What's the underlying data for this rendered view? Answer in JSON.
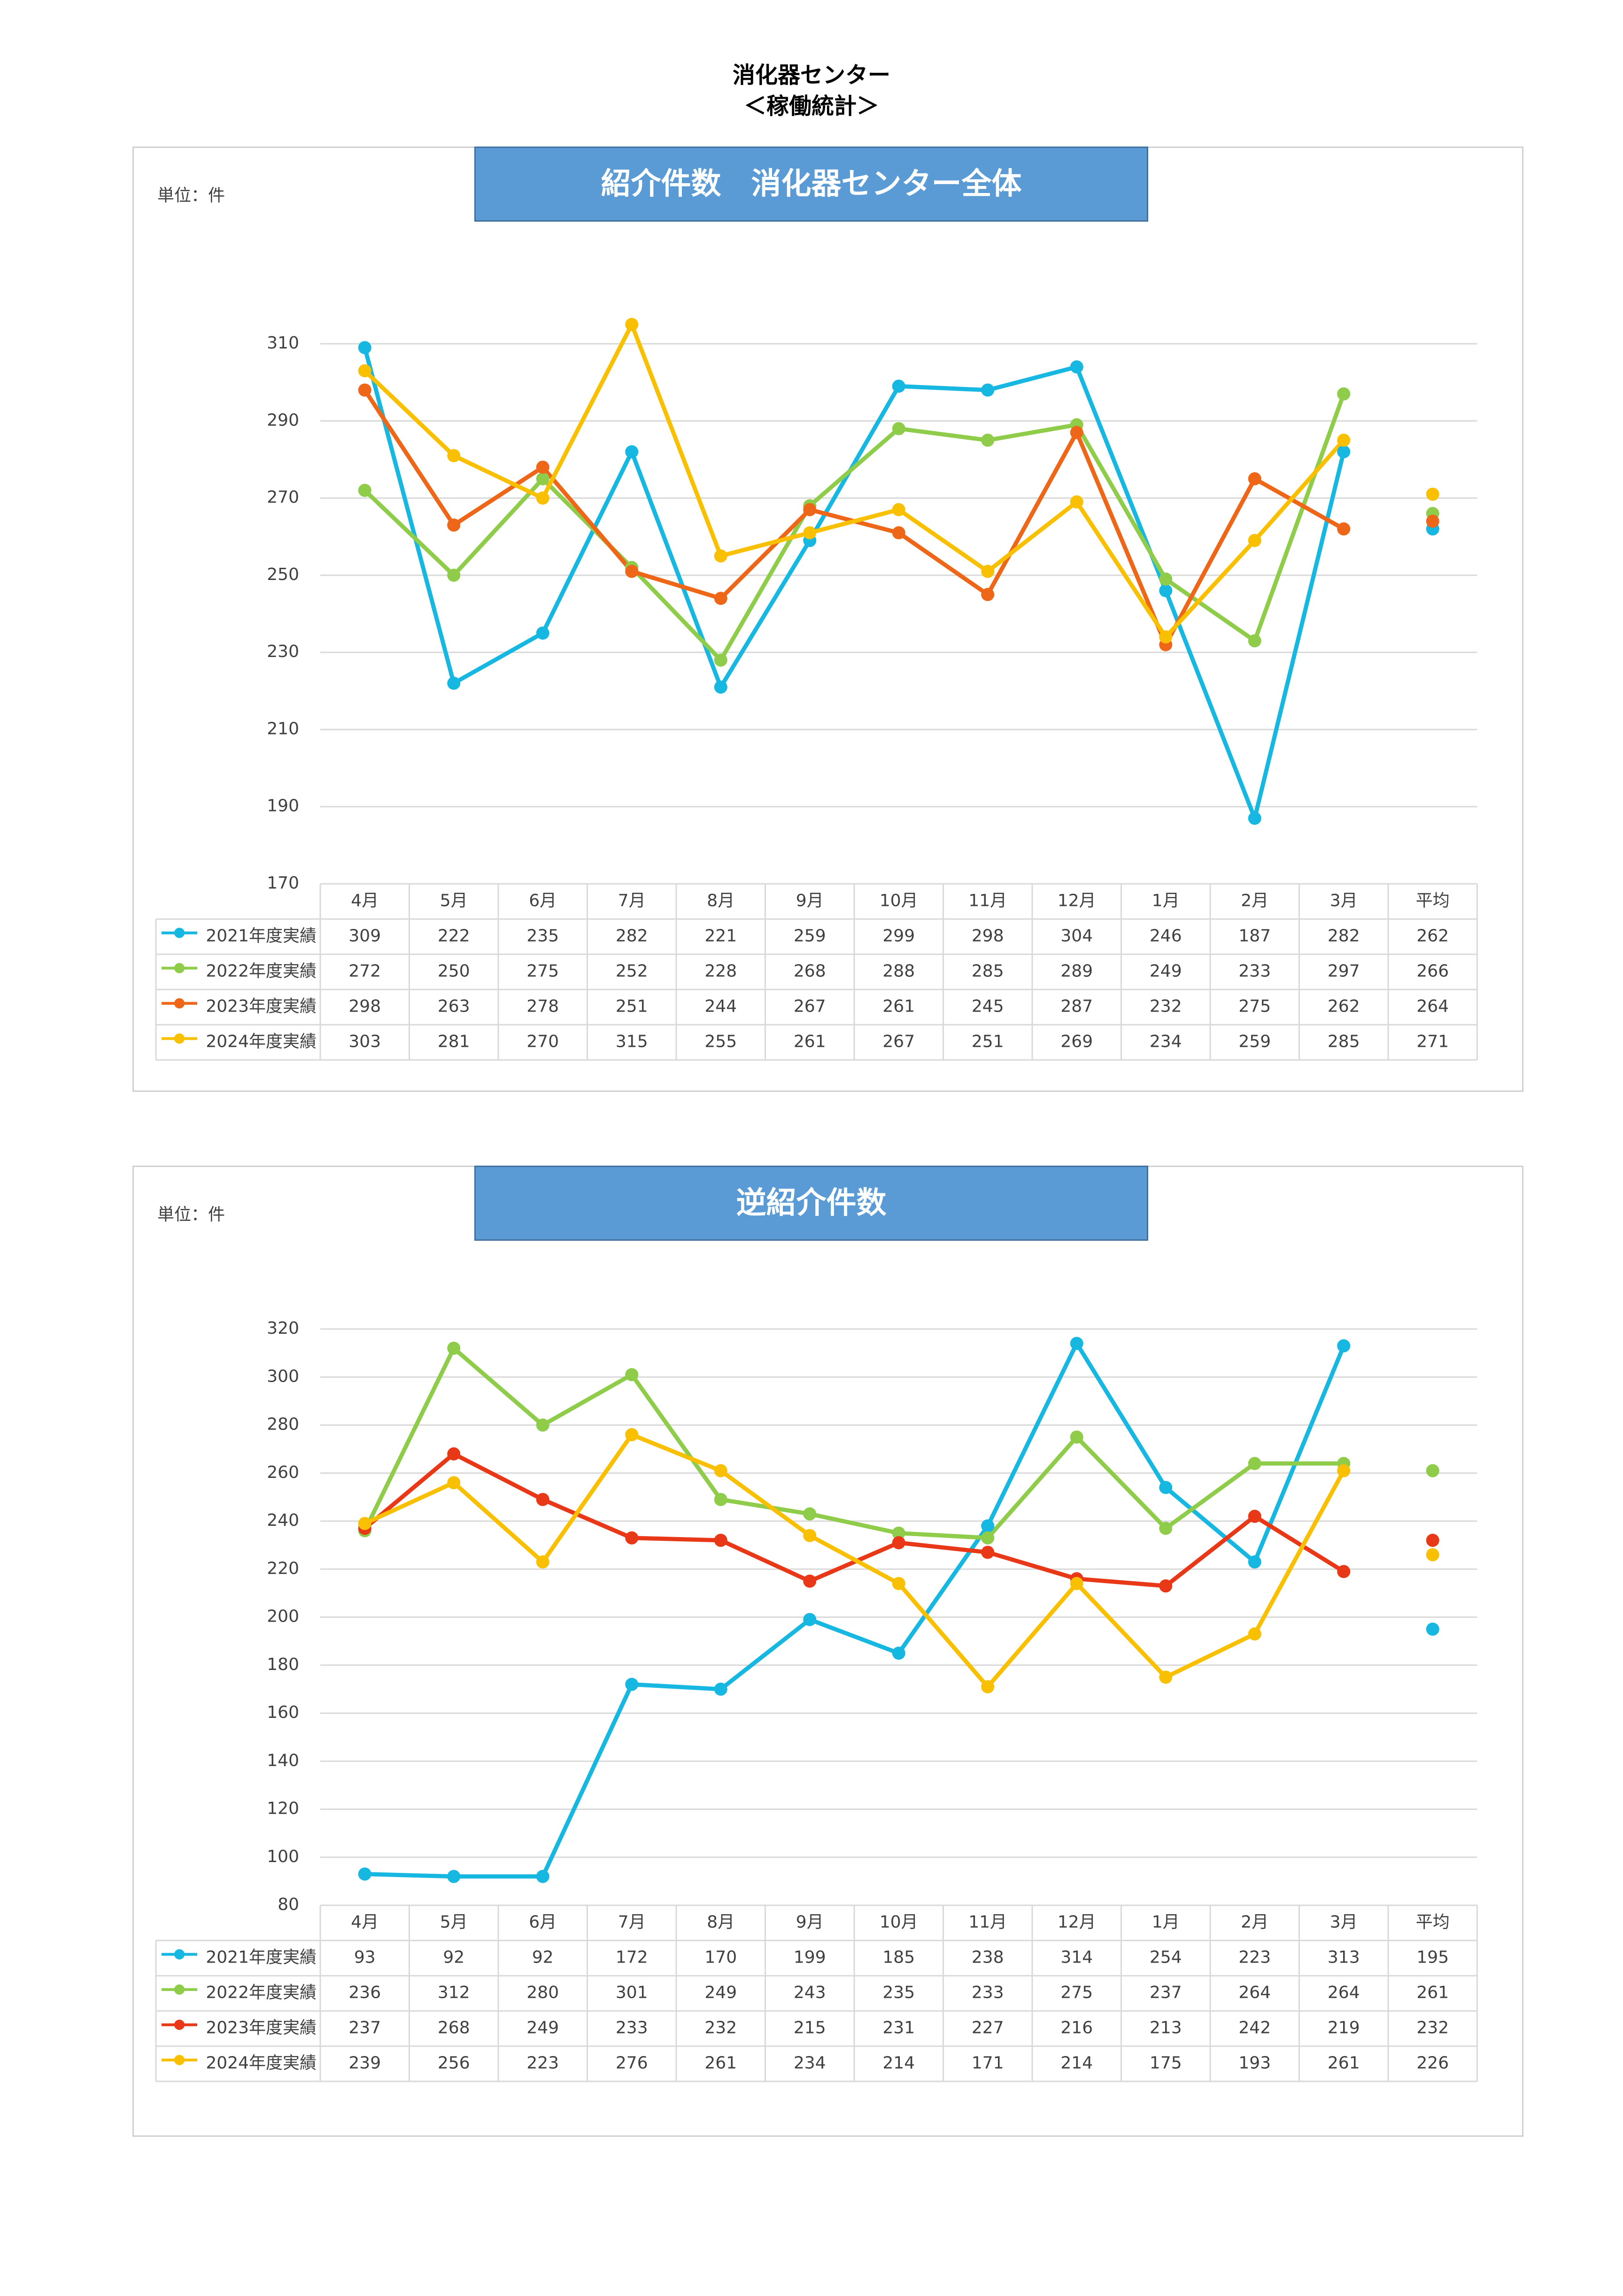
{
  "page": {
    "title_line1": "消化器センター",
    "title_line2": "＜稼働統計＞"
  },
  "colors": {
    "s2021": "#16b7e0",
    "s2022": "#8fcc4a",
    "s2023a": "#ee6617",
    "s2023b": "#e83818",
    "s2024": "#f8c000",
    "grid": "#d9d9d9",
    "header_blue": "#5b9bd5"
  },
  "chart_data": [
    {
      "type": "line",
      "title": "紹介件数　消化器センター全体",
      "unit": "単位：件",
      "categories": [
        "4月",
        "5月",
        "6月",
        "7月",
        "8月",
        "9月",
        "10月",
        "11月",
        "12月",
        "1月",
        "2月",
        "3月"
      ],
      "avg_label": "平均",
      "ylim": [
        170,
        310
      ],
      "yticks": [
        170,
        190,
        210,
        230,
        250,
        270,
        290,
        310
      ],
      "grid": true,
      "series": [
        {
          "name": "2021年度実績",
          "values": [
            309,
            222,
            235,
            282,
            221,
            259,
            299,
            298,
            304,
            246,
            187,
            282
          ],
          "avg": 262
        },
        {
          "name": "2022年度実績",
          "values": [
            272,
            250,
            275,
            252,
            228,
            268,
            288,
            285,
            289,
            249,
            233,
            297
          ],
          "avg": 266
        },
        {
          "name": "2023年度実績",
          "values": [
            298,
            263,
            278,
            251,
            244,
            267,
            261,
            245,
            287,
            232,
            275,
            262
          ],
          "avg": 264
        },
        {
          "name": "2024年度実績",
          "values": [
            303,
            281,
            270,
            315,
            255,
            261,
            267,
            251,
            269,
            234,
            259,
            285
          ],
          "avg": 271
        }
      ]
    },
    {
      "type": "line",
      "title": "逆紹介件数",
      "unit": "単位：件",
      "categories": [
        "4月",
        "5月",
        "6月",
        "7月",
        "8月",
        "9月",
        "10月",
        "11月",
        "12月",
        "1月",
        "2月",
        "3月"
      ],
      "avg_label": "平均",
      "ylim": [
        80,
        320
      ],
      "yticks": [
        80,
        100,
        120,
        140,
        160,
        180,
        200,
        220,
        240,
        260,
        280,
        300,
        320
      ],
      "grid": true,
      "series": [
        {
          "name": "2021年度実績",
          "values": [
            93,
            92,
            92,
            172,
            170,
            199,
            185,
            238,
            314,
            254,
            223,
            313
          ],
          "avg": 195
        },
        {
          "name": "2022年度実績",
          "values": [
            236,
            312,
            280,
            301,
            249,
            243,
            235,
            233,
            275,
            237,
            264,
            264
          ],
          "avg": 261
        },
        {
          "name": "2023年度実績",
          "values": [
            237,
            268,
            249,
            233,
            232,
            215,
            231,
            227,
            216,
            213,
            242,
            219
          ],
          "avg": 232
        },
        {
          "name": "2024年度実績",
          "values": [
            239,
            256,
            223,
            276,
            261,
            234,
            214,
            171,
            214,
            175,
            193,
            261
          ],
          "avg": 226
        }
      ]
    }
  ]
}
